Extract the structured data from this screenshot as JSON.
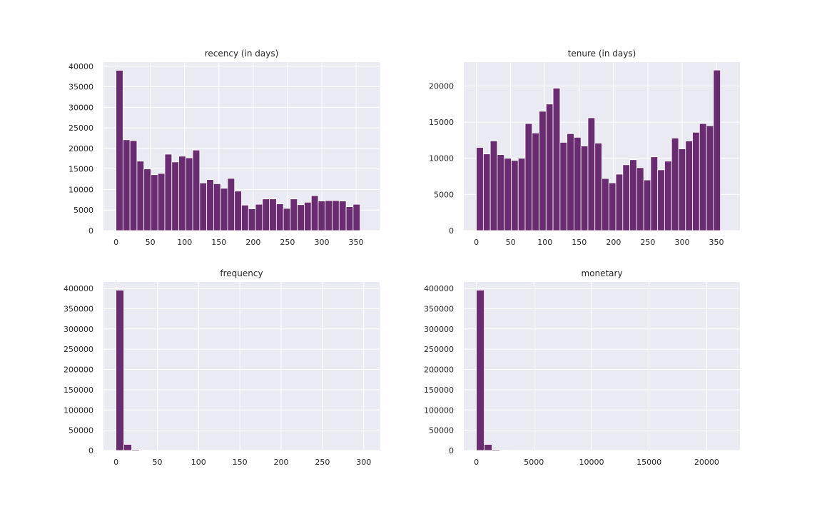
{
  "chart_data": [
    {
      "type": "bar",
      "title": "recency (in days)",
      "xlabel": "",
      "ylabel": "",
      "bar_color": "#6a2c70",
      "background": "#eaeaf2",
      "grid": true,
      "x_range": [
        -18.3,
        384.3
      ],
      "ylim": [
        0,
        41000
      ],
      "xticks": [
        0,
        50,
        100,
        150,
        200,
        250,
        300,
        350
      ],
      "yticks": [
        0,
        5000,
        10000,
        15000,
        20000,
        25000,
        30000,
        35000,
        40000
      ],
      "bins": {
        "start": 0,
        "end": 366,
        "count": 36
      },
      "values": [
        39000,
        22100,
        21900,
        16900,
        15000,
        13600,
        13900,
        18600,
        16700,
        18100,
        17700,
        19600,
        11600,
        12400,
        11400,
        10300,
        12700,
        9600,
        6200,
        5300,
        6400,
        7700,
        7700,
        6500,
        5400,
        7700,
        6300,
        6900,
        8500,
        7200,
        7300,
        7300,
        7200,
        5800,
        6400,
        0
      ]
    },
    {
      "type": "bar",
      "title": "tenure (in days)",
      "xlabel": "",
      "ylabel": "",
      "bar_color": "#6a2c70",
      "background": "#eaeaf2",
      "grid": true,
      "x_range": [
        -18.3,
        384.3
      ],
      "ylim": [
        0,
        23300
      ],
      "xticks": [
        0,
        50,
        100,
        150,
        200,
        250,
        300,
        350
      ],
      "yticks": [
        0,
        5000,
        10000,
        15000,
        20000
      ],
      "bins": {
        "start": 0,
        "end": 366,
        "count": 36
      },
      "values": [
        11500,
        10600,
        12400,
        10500,
        10000,
        9700,
        10000,
        14800,
        13500,
        16500,
        17500,
        19700,
        12200,
        13400,
        12900,
        11700,
        15600,
        12100,
        7200,
        6600,
        7800,
        9100,
        9800,
        8700,
        7000,
        10200,
        8400,
        9600,
        12800,
        11300,
        12400,
        13600,
        14800,
        14500,
        22200,
        0
      ]
    },
    {
      "type": "bar",
      "title": "frequency",
      "xlabel": "",
      "ylabel": "",
      "bar_color": "#6a2c70",
      "background": "#eaeaf2",
      "grid": true,
      "x_range": [
        -15.2,
        319.2
      ],
      "ylim": [
        0,
        416000
      ],
      "xticks": [
        0,
        50,
        100,
        150,
        200,
        250,
        300
      ],
      "yticks": [
        0,
        50000,
        100000,
        150000,
        200000,
        250000,
        300000,
        350000,
        400000
      ],
      "bins": {
        "start": 0,
        "end": 304,
        "count": 32
      },
      "values": [
        396000,
        15000,
        2500,
        900,
        400,
        200,
        150,
        100,
        80,
        60,
        50,
        40,
        30,
        25,
        20,
        15,
        12,
        10,
        8,
        7,
        6,
        5,
        4,
        4,
        3,
        3,
        2,
        2,
        2,
        1,
        1,
        1
      ]
    },
    {
      "type": "bar",
      "title": "monetary",
      "xlabel": "",
      "ylabel": "",
      "bar_color": "#6a2c70",
      "background": "#eaeaf2",
      "grid": true,
      "x_range": [
        -1090,
        22890
      ],
      "ylim": [
        0,
        416000
      ],
      "xticks": [
        0,
        5000,
        10000,
        15000,
        20000
      ],
      "yticks": [
        0,
        50000,
        100000,
        150000,
        200000,
        250000,
        300000,
        350000,
        400000
      ],
      "bins": {
        "start": 0,
        "end": 21800,
        "count": 32
      },
      "values": [
        396000,
        15000,
        2500,
        900,
        400,
        200,
        150,
        100,
        80,
        60,
        50,
        40,
        30,
        25,
        20,
        15,
        12,
        10,
        8,
        7,
        6,
        5,
        4,
        4,
        3,
        3,
        2,
        2,
        2,
        1,
        1,
        1
      ]
    }
  ]
}
